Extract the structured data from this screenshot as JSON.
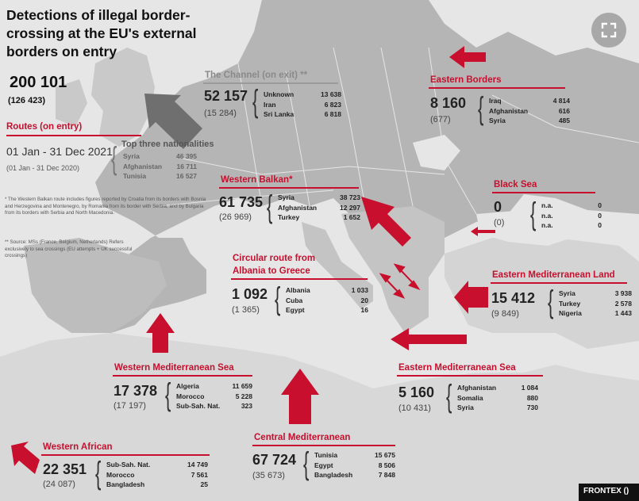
{
  "title": "Detections of illegal border-crossing at the EU's external borders on entry",
  "total": "200 101",
  "total_prev": "(126 423)",
  "routes": {
    "label": "Routes (on entry)",
    "date": "01 Jan - 31 Dec 2021",
    "date_prev": "(01 Jan - 31 Dec 2020)",
    "header": "Top three nationalities",
    "items": [
      {
        "name": "Syria",
        "value": "46 395"
      },
      {
        "name": "Afghanistan",
        "value": "16 711"
      },
      {
        "name": "Tunisia",
        "value": "16 527"
      }
    ]
  },
  "notes": {
    "western_balkan": "* The Western Balkan route includes figures reported by Croatia from its borders with Bosnia and Herzegovina and Montenegro, by Romania from its border with Serbia, and by Bulgaria from its borders with Serbia and North Macedonia.",
    "source": "** Source: MSs (France, Belgium, Netherlands) Refers exclusively to sea crossings (EU attempts + UK successful crossings)"
  },
  "channel": {
    "label": "The Channel (on exit) **",
    "total": "52 157",
    "prev": "(15 284)",
    "items": [
      {
        "name": "Unknown",
        "value": "13 638"
      },
      {
        "name": "Iran",
        "value": "6 823"
      },
      {
        "name": "Sri Lanka",
        "value": "6 818"
      }
    ]
  },
  "eastern_borders": {
    "label": "Eastern Borders",
    "total": "8 160",
    "prev": "(677)",
    "items": [
      {
        "name": "Iraq",
        "value": "4 814"
      },
      {
        "name": "Afghanistan",
        "value": "616"
      },
      {
        "name": "Syria",
        "value": "485"
      }
    ]
  },
  "western_balkan": {
    "label": "Western Balkan*",
    "total": "61 735",
    "prev": "(26 969)",
    "items": [
      {
        "name": "Syria",
        "value": "38 723"
      },
      {
        "name": "Afghanistan",
        "value": "12 297"
      },
      {
        "name": "Turkey",
        "value": "1 652"
      }
    ]
  },
  "black_sea": {
    "label": "Black Sea",
    "total": "0",
    "prev": "(0)",
    "items": [
      {
        "name": "n.a.",
        "value": "0"
      },
      {
        "name": "n.a.",
        "value": "0"
      },
      {
        "name": "n.a.",
        "value": "0"
      }
    ]
  },
  "circular": {
    "label_line1": "Circular route from",
    "label_line2": "Albania to Greece",
    "total": "1 092",
    "prev": "(1 365)",
    "items": [
      {
        "name": "Albania",
        "value": "1 033"
      },
      {
        "name": "Cuba",
        "value": "20"
      },
      {
        "name": "Egypt",
        "value": "16"
      }
    ]
  },
  "eastern_med_land": {
    "label": "Eastern Mediterranean Land",
    "total": "15 412",
    "prev": "(9 849)",
    "items": [
      {
        "name": "Syria",
        "value": "3 938"
      },
      {
        "name": "Turkey",
        "value": "2 578"
      },
      {
        "name": "Nigeria",
        "value": "1 443"
      }
    ]
  },
  "western_med": {
    "label": "Western Mediterranean Sea",
    "total": "17 378",
    "prev": "(17 197)",
    "items": [
      {
        "name": "Algeria",
        "value": "11 659"
      },
      {
        "name": "Morocco",
        "value": "5 228"
      },
      {
        "name": "Sub-Sah. Nat.",
        "value": "323"
      }
    ]
  },
  "eastern_med_sea": {
    "label": "Eastern Mediterranean Sea",
    "total": "5 160",
    "prev": "(10 431)",
    "items": [
      {
        "name": "Afghanistan",
        "value": "1 084"
      },
      {
        "name": "Somalia",
        "value": "880"
      },
      {
        "name": "Syria",
        "value": "730"
      }
    ]
  },
  "western_african": {
    "label": "Western African",
    "total": "22 351",
    "prev": "(24 087)",
    "items": [
      {
        "name": "Sub-Sah. Nat.",
        "value": "14 749"
      },
      {
        "name": "Morocco",
        "value": "7 561"
      },
      {
        "name": "Bangladesh",
        "value": "25"
      }
    ]
  },
  "central_med": {
    "label": "Central Mediterranean",
    "total": "67 724",
    "prev": "(35 673)",
    "items": [
      {
        "name": "Tunisia",
        "value": "15 675"
      },
      {
        "name": "Egypt",
        "value": "8 506"
      },
      {
        "name": "Bangladesh",
        "value": "7 848"
      }
    ]
  },
  "credit": "FRONTEX ()",
  "colors": {
    "accent": "#c8102e",
    "land": "#b9b9b9",
    "sea": "#e6e6e6",
    "highlight_land": "#d6d6d6",
    "arrow_grey": "#6f6f6f"
  },
  "icons": {
    "expand": "expand-icon"
  }
}
